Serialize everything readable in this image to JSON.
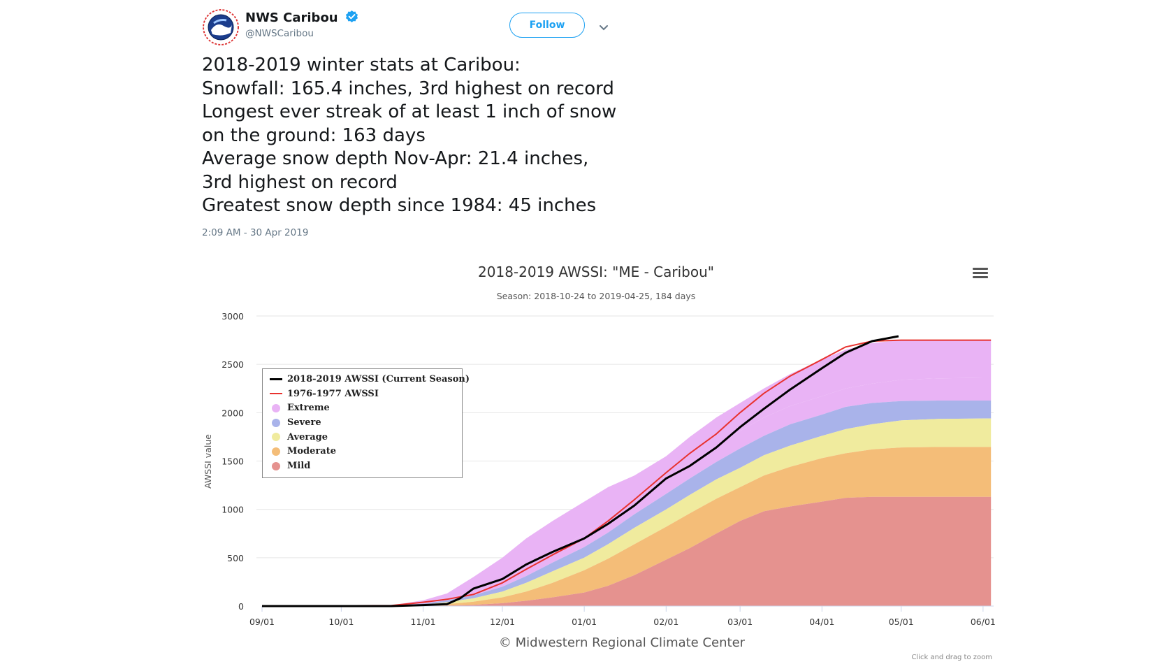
{
  "tweet": {
    "display_name": "NWS Caribou",
    "handle": "@NWSCaribou",
    "follow_label": "Follow",
    "lines": [
      "2018-2019 winter stats at Caribou:",
      "Snowfall:  165.4 inches, 3rd highest on record",
      "Longest ever streak of at least 1 inch of snow",
      "on the ground:  163 days",
      "Average snow depth Nov-Apr:  21.4 inches,",
      "3rd highest on record",
      "Greatest snow depth since 1984:  45 inches"
    ],
    "timestamp": "2:09 AM - 30 Apr 2019",
    "colors": {
      "accent": "#1da1f2",
      "text": "#14171a",
      "muted": "#657786"
    },
    "icons": [
      "nws-logo-icon",
      "verified-badge-icon",
      "chevron-down-icon",
      "hamburger-menu-icon"
    ]
  },
  "chart_data": {
    "type": "area",
    "title": "2018-2019 AWSSI: \"ME - Caribou\"",
    "subtitle": "Season: 2018-10-24 to 2019-04-25, 184 days",
    "ylabel": "AWSSI value",
    "xlabel": "",
    "ylim": [
      0,
      3000
    ],
    "yticks": [
      0,
      500,
      1000,
      1500,
      2000,
      2500,
      3000
    ],
    "xlim": [
      "2018-09-01",
      "2019-06-05"
    ],
    "xticks": [
      "09/01",
      "10/01",
      "11/01",
      "12/01",
      "01/01",
      "02/01",
      "03/01",
      "04/01",
      "05/01",
      "06/01"
    ],
    "x": [
      "2018-09-01",
      "2018-10-20",
      "2018-11-01",
      "2018-11-10",
      "2018-11-20",
      "2018-12-01",
      "2018-12-10",
      "2018-12-20",
      "2019-01-01",
      "2019-01-10",
      "2019-01-20",
      "2019-02-01",
      "2019-02-10",
      "2019-02-20",
      "2019-03-01",
      "2019-03-10",
      "2019-03-20",
      "2019-04-01",
      "2019-04-10",
      "2019-04-20",
      "2019-05-01",
      "2019-05-15",
      "2019-06-01",
      "2019-06-04"
    ],
    "bands": [
      {
        "name": "Mild",
        "color": "#e5928f",
        "values": [
          0,
          0,
          2,
          5,
          12,
          30,
          55,
          90,
          140,
          210,
          320,
          480,
          600,
          750,
          880,
          980,
          1030,
          1080,
          1120,
          1130,
          1130,
          1130,
          1130,
          1130
        ]
      },
      {
        "name": "Moderate",
        "color": "#f4bd78",
        "values": [
          0,
          0,
          8,
          20,
          45,
          90,
          150,
          240,
          370,
          490,
          640,
          820,
          960,
          1110,
          1230,
          1350,
          1440,
          1530,
          1580,
          1620,
          1640,
          1645,
          1645,
          1645
        ]
      },
      {
        "name": "Average",
        "color": "#f0eb9e",
        "values": [
          0,
          1,
          15,
          40,
          80,
          150,
          240,
          360,
          500,
          640,
          810,
          1000,
          1150,
          1310,
          1430,
          1560,
          1660,
          1760,
          1830,
          1880,
          1920,
          1935,
          1940,
          1940
        ]
      },
      {
        "name": "Severe",
        "color": "#a9b3ea",
        "values": [
          0,
          2,
          25,
          60,
          110,
          200,
          310,
          450,
          610,
          760,
          950,
          1160,
          1320,
          1490,
          1630,
          1760,
          1880,
          1980,
          2060,
          2100,
          2120,
          2125,
          2125,
          2125
        ]
      },
      {
        "name": "Extreme",
        "color": "#e9b3f5",
        "values": [
          0,
          4,
          40,
          85,
          150,
          260,
          400,
          560,
          750,
          910,
          1100,
          1320,
          1480,
          1660,
          1810,
          1950,
          2070,
          2170,
          2250,
          2300,
          2340,
          2355,
          2360,
          2360
        ]
      },
      {
        "name": "Extreme-top",
        "color": "#e9b3f5",
        "values": [
          0,
          8,
          60,
          130,
          300,
          500,
          700,
          880,
          1080,
          1230,
          1350,
          1550,
          1750,
          1950,
          2100,
          2250,
          2400,
          2550,
          2650,
          2720,
          2750,
          2750,
          2750,
          2750
        ]
      }
    ],
    "series": [
      {
        "name": "2018-2019 AWSSI (Current Season)",
        "color": "#000000",
        "x": [
          "2018-09-01",
          "2018-10-20",
          "2018-11-01",
          "2018-11-10",
          "2018-11-15",
          "2018-11-20",
          "2018-12-01",
          "2018-12-10",
          "2018-12-20",
          "2019-01-01",
          "2019-01-10",
          "2019-01-20",
          "2019-02-01",
          "2019-02-10",
          "2019-02-20",
          "2019-03-01",
          "2019-03-10",
          "2019-03-20",
          "2019-04-01",
          "2019-04-10",
          "2019-04-20",
          "2019-04-30"
        ],
        "values": [
          0,
          0,
          10,
          20,
          80,
          180,
          280,
          430,
          560,
          700,
          850,
          1040,
          1320,
          1450,
          1640,
          1850,
          2040,
          2240,
          2460,
          2620,
          2740,
          2790
        ]
      },
      {
        "name": "1976-1977 AWSSI",
        "color": "#e8322f",
        "x": [
          "2018-09-01",
          "2018-10-20",
          "2018-11-01",
          "2018-11-10",
          "2018-11-20",
          "2018-12-01",
          "2018-12-10",
          "2018-12-20",
          "2019-01-01",
          "2019-01-10",
          "2019-01-20",
          "2019-02-01",
          "2019-02-10",
          "2019-02-20",
          "2019-03-01",
          "2019-03-10",
          "2019-03-20",
          "2019-04-01",
          "2019-04-10",
          "2019-04-20",
          "2019-05-01",
          "2019-06-04"
        ],
        "values": [
          0,
          5,
          40,
          70,
          120,
          240,
          380,
          530,
          700,
          880,
          1100,
          1380,
          1580,
          1780,
          2000,
          2200,
          2380,
          2550,
          2680,
          2740,
          2750,
          2750
        ]
      }
    ],
    "legend": {
      "position": "top-left",
      "items": [
        {
          "label": "2018-2019 AWSSI (Current Season)",
          "kind": "line",
          "color": "#000000"
        },
        {
          "label": "1976-1977 AWSSI",
          "kind": "line",
          "color": "#e8322f"
        },
        {
          "label": "Extreme",
          "kind": "dot",
          "color": "#e9b3f5"
        },
        {
          "label": "Severe",
          "kind": "dot",
          "color": "#a9b3ea"
        },
        {
          "label": "Average",
          "kind": "dot",
          "color": "#f0eb9e"
        },
        {
          "label": "Moderate",
          "kind": "dot",
          "color": "#f4bd78"
        },
        {
          "label": "Mild",
          "kind": "dot",
          "color": "#e5928f"
        }
      ]
    },
    "credit": "© Midwestern Regional Climate Center",
    "zoom_hint": "Click and drag to zoom",
    "grid": true
  }
}
